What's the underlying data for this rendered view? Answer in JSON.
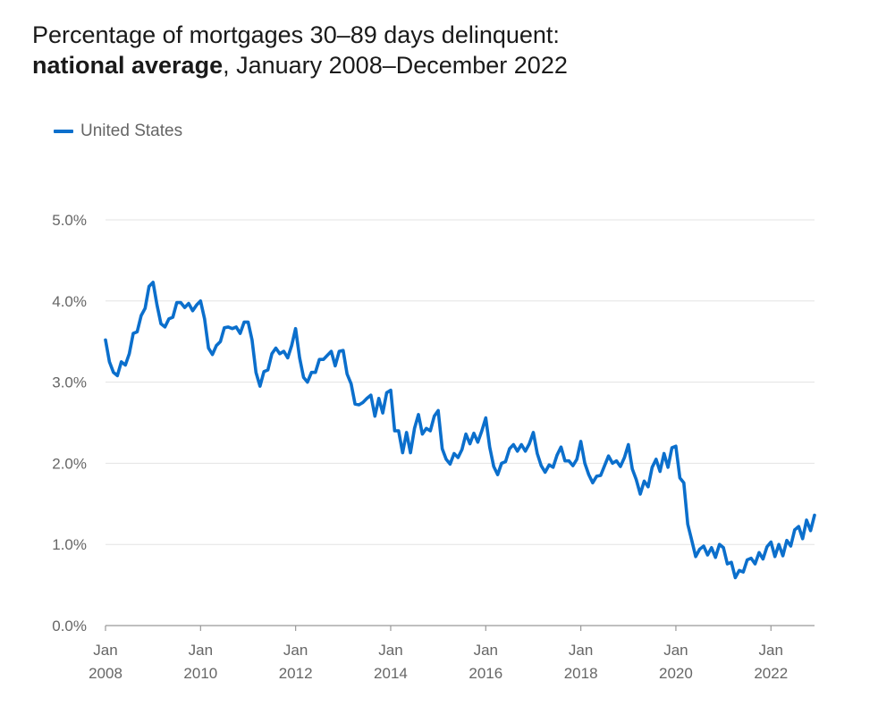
{
  "title": {
    "line1": "Percentage of mortgages 30–89 days delinquent:",
    "line2_bold": "national average",
    "line2_rest": ", January 2008–December 2022"
  },
  "colors": {
    "series": "#0b6fcc",
    "grid": "#e3e3e3",
    "axis": "#999999",
    "tick_text": "#666666"
  },
  "chart_data": {
    "type": "line",
    "title": "Percentage of mortgages 30–89 days delinquent: national average, January 2008–December 2022",
    "xlabel": "",
    "ylabel": "",
    "ylim": [
      0,
      5
    ],
    "xlim": [
      "2008-01",
      "2022-12"
    ],
    "grid": true,
    "legend_position": "top-left",
    "y_ticks": [
      {
        "value": 0,
        "label": "0.0%"
      },
      {
        "value": 1,
        "label": "1.0%"
      },
      {
        "value": 2,
        "label": "2.0%"
      },
      {
        "value": 3,
        "label": "3.0%"
      },
      {
        "value": 4,
        "label": "4.0%"
      },
      {
        "value": 5,
        "label": "5.0%"
      }
    ],
    "x_ticks": [
      {
        "value": "2008-01",
        "line1": "Jan",
        "line2": "2008"
      },
      {
        "value": "2010-01",
        "line1": "Jan",
        "line2": "2010"
      },
      {
        "value": "2012-01",
        "line1": "Jan",
        "line2": "2012"
      },
      {
        "value": "2014-01",
        "line1": "Jan",
        "line2": "2014"
      },
      {
        "value": "2016-01",
        "line1": "Jan",
        "line2": "2016"
      },
      {
        "value": "2018-01",
        "line1": "Jan",
        "line2": "2018"
      },
      {
        "value": "2020-01",
        "line1": "Jan",
        "line2": "2020"
      },
      {
        "value": "2022-01",
        "line1": "Jan",
        "line2": "2022"
      }
    ],
    "series": [
      {
        "name": "United States",
        "points": [
          [
            "2008-01",
            3.52
          ],
          [
            "2008-02",
            3.25
          ],
          [
            "2008-03",
            3.12
          ],
          [
            "2008-04",
            3.08
          ],
          [
            "2008-05",
            3.25
          ],
          [
            "2008-06",
            3.21
          ],
          [
            "2008-07",
            3.35
          ],
          [
            "2008-08",
            3.6
          ],
          [
            "2008-09",
            3.62
          ],
          [
            "2008-10",
            3.82
          ],
          [
            "2008-11",
            3.91
          ],
          [
            "2008-12",
            4.18
          ],
          [
            "2009-01",
            4.23
          ],
          [
            "2009-02",
            3.95
          ],
          [
            "2009-03",
            3.72
          ],
          [
            "2009-04",
            3.68
          ],
          [
            "2009-05",
            3.78
          ],
          [
            "2009-06",
            3.8
          ],
          [
            "2009-07",
            3.98
          ],
          [
            "2009-08",
            3.98
          ],
          [
            "2009-09",
            3.92
          ],
          [
            "2009-10",
            3.97
          ],
          [
            "2009-11",
            3.88
          ],
          [
            "2009-12",
            3.95
          ],
          [
            "2010-01",
            4.0
          ],
          [
            "2010-02",
            3.78
          ],
          [
            "2010-03",
            3.42
          ],
          [
            "2010-04",
            3.34
          ],
          [
            "2010-05",
            3.45
          ],
          [
            "2010-06",
            3.5
          ],
          [
            "2010-07",
            3.67
          ],
          [
            "2010-08",
            3.68
          ],
          [
            "2010-09",
            3.66
          ],
          [
            "2010-10",
            3.68
          ],
          [
            "2010-11",
            3.6
          ],
          [
            "2010-12",
            3.74
          ],
          [
            "2011-01",
            3.74
          ],
          [
            "2011-02",
            3.52
          ],
          [
            "2011-03",
            3.12
          ],
          [
            "2011-04",
            2.95
          ],
          [
            "2011-05",
            3.13
          ],
          [
            "2011-06",
            3.15
          ],
          [
            "2011-07",
            3.35
          ],
          [
            "2011-08",
            3.42
          ],
          [
            "2011-09",
            3.35
          ],
          [
            "2011-10",
            3.38
          ],
          [
            "2011-11",
            3.3
          ],
          [
            "2011-12",
            3.45
          ],
          [
            "2012-01",
            3.66
          ],
          [
            "2012-02",
            3.3
          ],
          [
            "2012-03",
            3.06
          ],
          [
            "2012-04",
            3.0
          ],
          [
            "2012-05",
            3.12
          ],
          [
            "2012-06",
            3.12
          ],
          [
            "2012-07",
            3.28
          ],
          [
            "2012-08",
            3.28
          ],
          [
            "2012-09",
            3.33
          ],
          [
            "2012-10",
            3.38
          ],
          [
            "2012-11",
            3.2
          ],
          [
            "2012-12",
            3.38
          ],
          [
            "2013-01",
            3.39
          ],
          [
            "2013-02",
            3.1
          ],
          [
            "2013-03",
            2.98
          ],
          [
            "2013-04",
            2.73
          ],
          [
            "2013-05",
            2.72
          ],
          [
            "2013-06",
            2.75
          ],
          [
            "2013-07",
            2.8
          ],
          [
            "2013-08",
            2.84
          ],
          [
            "2013-09",
            2.58
          ],
          [
            "2013-10",
            2.8
          ],
          [
            "2013-11",
            2.62
          ],
          [
            "2013-12",
            2.87
          ],
          [
            "2014-01",
            2.9
          ],
          [
            "2014-02",
            2.4
          ],
          [
            "2014-03",
            2.4
          ],
          [
            "2014-04",
            2.13
          ],
          [
            "2014-05",
            2.38
          ],
          [
            "2014-06",
            2.13
          ],
          [
            "2014-07",
            2.43
          ],
          [
            "2014-08",
            2.6
          ],
          [
            "2014-09",
            2.36
          ],
          [
            "2014-10",
            2.43
          ],
          [
            "2014-11",
            2.4
          ],
          [
            "2014-12",
            2.58
          ],
          [
            "2015-01",
            2.65
          ],
          [
            "2015-02",
            2.18
          ],
          [
            "2015-03",
            2.05
          ],
          [
            "2015-04",
            1.99
          ],
          [
            "2015-05",
            2.12
          ],
          [
            "2015-06",
            2.07
          ],
          [
            "2015-07",
            2.17
          ],
          [
            "2015-08",
            2.36
          ],
          [
            "2015-09",
            2.24
          ],
          [
            "2015-10",
            2.37
          ],
          [
            "2015-11",
            2.26
          ],
          [
            "2015-12",
            2.4
          ],
          [
            "2016-01",
            2.56
          ],
          [
            "2016-02",
            2.2
          ],
          [
            "2016-03",
            1.96
          ],
          [
            "2016-04",
            1.86
          ],
          [
            "2016-05",
            2.0
          ],
          [
            "2016-06",
            2.02
          ],
          [
            "2016-07",
            2.18
          ],
          [
            "2016-08",
            2.23
          ],
          [
            "2016-09",
            2.15
          ],
          [
            "2016-10",
            2.23
          ],
          [
            "2016-11",
            2.15
          ],
          [
            "2016-12",
            2.24
          ],
          [
            "2017-01",
            2.38
          ],
          [
            "2017-02",
            2.12
          ],
          [
            "2017-03",
            1.97
          ],
          [
            "2017-04",
            1.89
          ],
          [
            "2017-05",
            1.98
          ],
          [
            "2017-06",
            1.95
          ],
          [
            "2017-07",
            2.1
          ],
          [
            "2017-08",
            2.2
          ],
          [
            "2017-09",
            2.03
          ],
          [
            "2017-10",
            2.03
          ],
          [
            "2017-11",
            1.97
          ],
          [
            "2017-12",
            2.05
          ],
          [
            "2018-01",
            2.27
          ],
          [
            "2018-02",
            2.0
          ],
          [
            "2018-03",
            1.86
          ],
          [
            "2018-04",
            1.76
          ],
          [
            "2018-05",
            1.84
          ],
          [
            "2018-06",
            1.85
          ],
          [
            "2018-07",
            1.97
          ],
          [
            "2018-08",
            2.09
          ],
          [
            "2018-09",
            2.0
          ],
          [
            "2018-10",
            2.03
          ],
          [
            "2018-11",
            1.96
          ],
          [
            "2018-12",
            2.07
          ],
          [
            "2019-01",
            2.23
          ],
          [
            "2019-02",
            1.93
          ],
          [
            "2019-03",
            1.8
          ],
          [
            "2019-04",
            1.62
          ],
          [
            "2019-05",
            1.78
          ],
          [
            "2019-06",
            1.71
          ],
          [
            "2019-07",
            1.95
          ],
          [
            "2019-08",
            2.05
          ],
          [
            "2019-09",
            1.9
          ],
          [
            "2019-10",
            2.12
          ],
          [
            "2019-11",
            1.95
          ],
          [
            "2019-12",
            2.19
          ],
          [
            "2020-01",
            2.21
          ],
          [
            "2020-02",
            1.82
          ],
          [
            "2020-03",
            1.76
          ],
          [
            "2020-04",
            1.25
          ],
          [
            "2020-05",
            1.05
          ],
          [
            "2020-06",
            0.85
          ],
          [
            "2020-07",
            0.94
          ],
          [
            "2020-08",
            0.98
          ],
          [
            "2020-09",
            0.87
          ],
          [
            "2020-10",
            0.96
          ],
          [
            "2020-11",
            0.84
          ],
          [
            "2020-12",
            1.0
          ],
          [
            "2021-01",
            0.96
          ],
          [
            "2021-02",
            0.76
          ],
          [
            "2021-03",
            0.78
          ],
          [
            "2021-04",
            0.59
          ],
          [
            "2021-05",
            0.68
          ],
          [
            "2021-06",
            0.66
          ],
          [
            "2021-07",
            0.81
          ],
          [
            "2021-08",
            0.83
          ],
          [
            "2021-09",
            0.76
          ],
          [
            "2021-10",
            0.9
          ],
          [
            "2021-11",
            0.82
          ],
          [
            "2021-12",
            0.97
          ],
          [
            "2022-01",
            1.03
          ],
          [
            "2022-02",
            0.85
          ],
          [
            "2022-03",
            1.0
          ],
          [
            "2022-04",
            0.86
          ],
          [
            "2022-05",
            1.05
          ],
          [
            "2022-06",
            0.98
          ],
          [
            "2022-07",
            1.18
          ],
          [
            "2022-08",
            1.22
          ],
          [
            "2022-09",
            1.07
          ],
          [
            "2022-10",
            1.3
          ],
          [
            "2022-11",
            1.17
          ],
          [
            "2022-12",
            1.36
          ]
        ]
      }
    ]
  }
}
